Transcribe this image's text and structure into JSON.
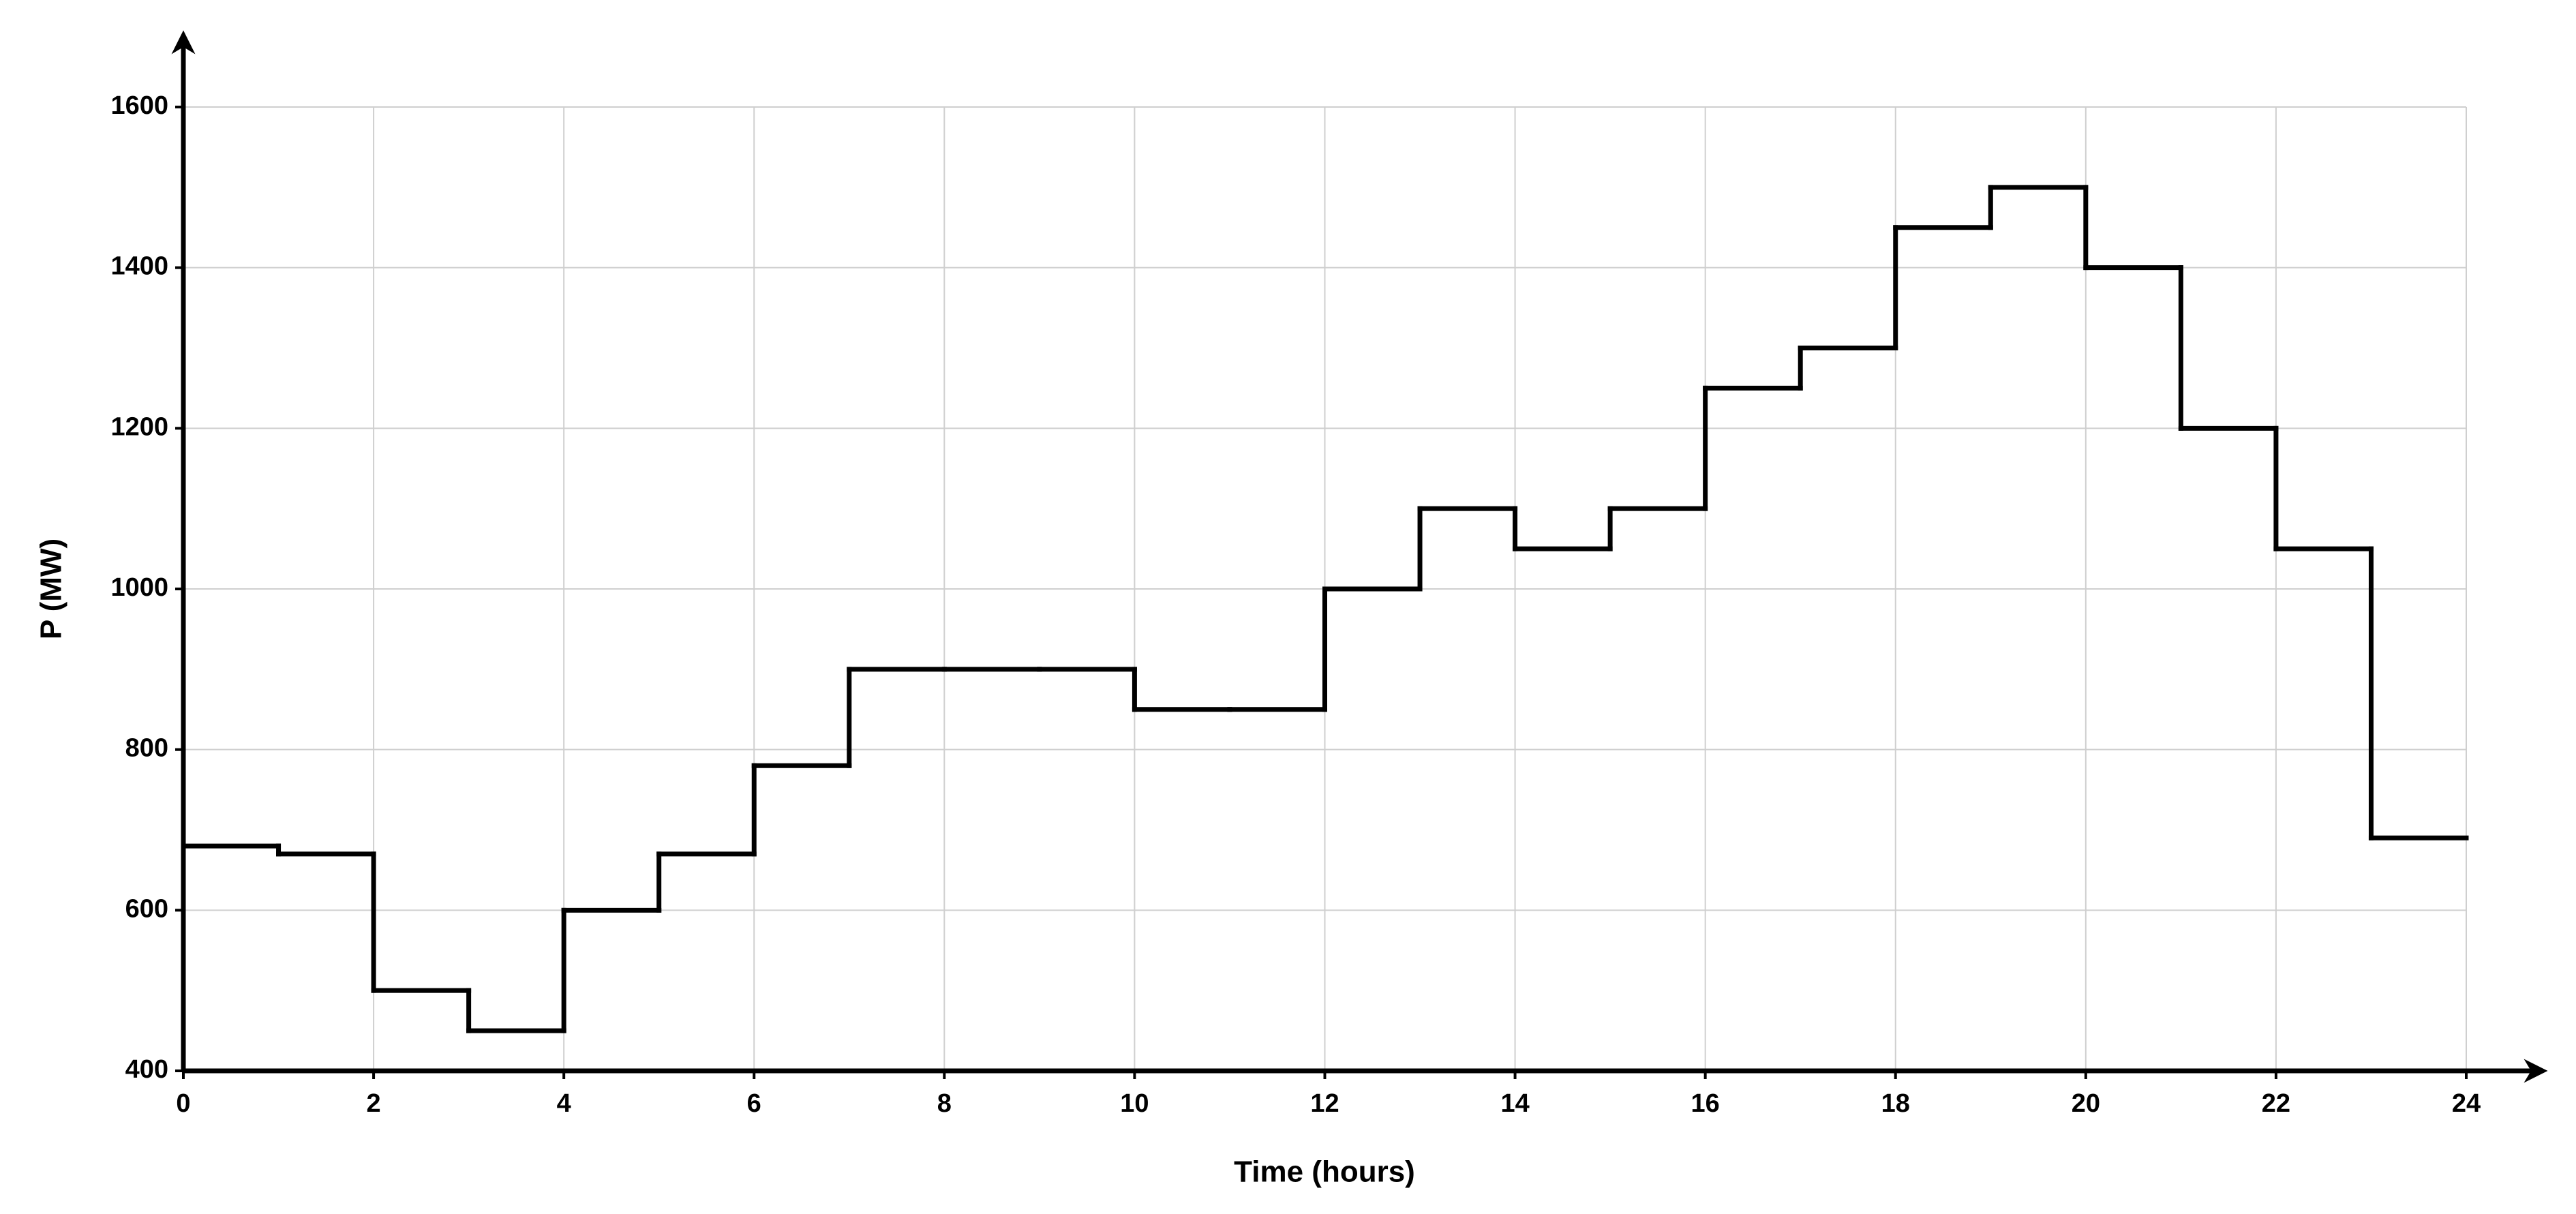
{
  "chart_data": {
    "type": "step",
    "x_label": "Time (hours)",
    "y_label": "P (MW)",
    "x": [
      0,
      1,
      2,
      3,
      4,
      5,
      6,
      7,
      8,
      9,
      10,
      11,
      12,
      13,
      14,
      15,
      16,
      17,
      18,
      19,
      20,
      21,
      22,
      23
    ],
    "values": [
      680,
      670,
      500,
      450,
      600,
      670,
      780,
      900,
      900,
      900,
      850,
      850,
      1000,
      1100,
      1050,
      1100,
      1250,
      1300,
      1450,
      1500,
      1400,
      1200,
      1050,
      690
    ],
    "color": "#000000",
    "xlim": [
      0,
      24
    ],
    "xticks": [
      0,
      2,
      4,
      6,
      8,
      10,
      12,
      14,
      16,
      18,
      20,
      22,
      24
    ],
    "ylim": [
      400,
      1600
    ],
    "yticks": [
      400,
      600,
      800,
      1000,
      1200,
      1400,
      1600
    ],
    "grid": true
  }
}
